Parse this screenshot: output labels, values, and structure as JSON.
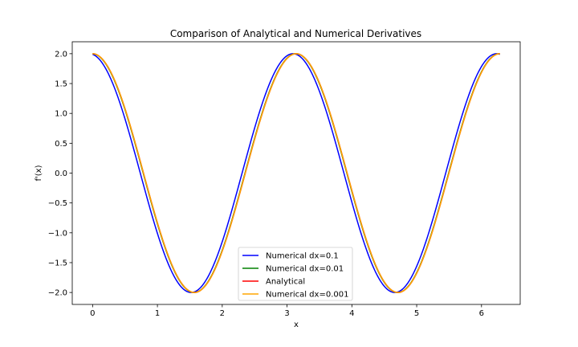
{
  "chart_data": {
    "type": "line",
    "title": "Comparison of Analytical and Numerical Derivatives",
    "xlabel": "x",
    "ylabel": "f'(x)",
    "xlim": [
      -0.314,
      6.597
    ],
    "ylim": [
      -2.2,
      2.2
    ],
    "xticks": [
      0,
      1,
      2,
      3,
      4,
      5,
      6
    ],
    "xtick_labels": [
      "0",
      "1",
      "2",
      "3",
      "4",
      "5",
      "6"
    ],
    "yticks": [
      -2.0,
      -1.5,
      -1.0,
      -0.5,
      0.0,
      0.5,
      1.0,
      1.5,
      2.0
    ],
    "ytick_labels": [
      "−2.0",
      "−1.5",
      "−1.0",
      "−0.5",
      "0.0",
      "0.5",
      "1.0",
      "1.5",
      "2.0"
    ],
    "grid": false,
    "legend_position": "lower-center",
    "x_range": [
      0,
      6.2832
    ],
    "series": [
      {
        "name": "Numerical dx=0.1",
        "color": "#0000ff",
        "function": "2*cos(2*x + 0.1)",
        "phase_shift": 0.1
      },
      {
        "name": "Numerical dx=0.01",
        "color": "#008000",
        "function": "2*cos(2*x + 0.01)",
        "phase_shift": 0.01
      },
      {
        "name": "Analytical",
        "color": "#ff0000",
        "function": "2*cos(2*x)",
        "phase_shift": 0.0
      },
      {
        "name": "Numerical dx=0.001",
        "color": "#ffa500",
        "function": "2*cos(2*x + 0.001)",
        "phase_shift": 0.001
      }
    ],
    "sample_points": {
      "x": [
        0,
        0.785,
        1.571,
        2.356,
        3.142,
        3.927,
        4.712,
        5.498,
        6.283
      ],
      "Analytical": [
        2.0,
        0.0,
        -2.0,
        0.0,
        2.0,
        0.0,
        -2.0,
        0.0,
        2.0
      ]
    }
  }
}
